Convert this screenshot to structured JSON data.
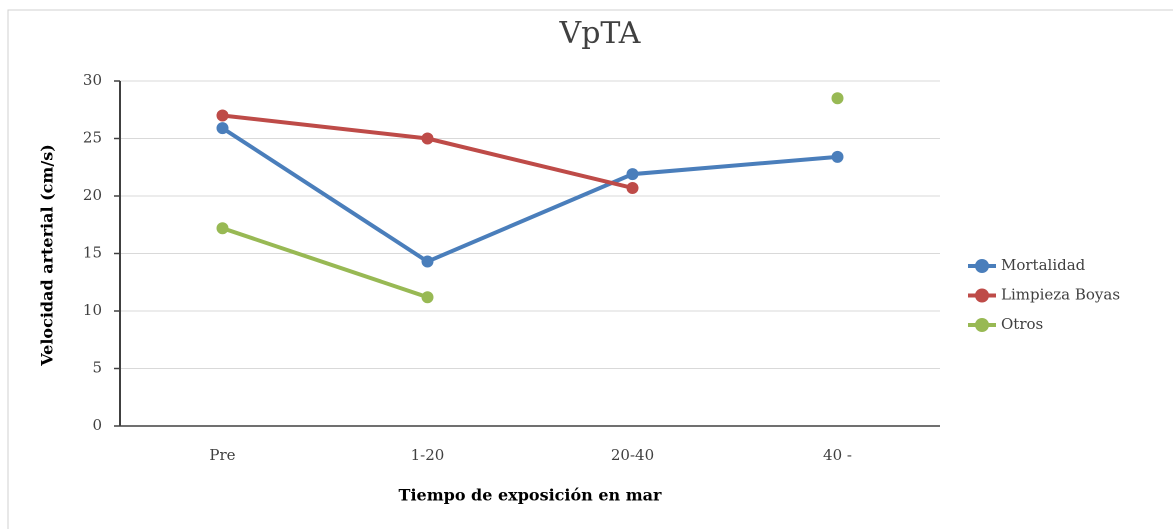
{
  "chart_data": {
    "type": "line",
    "title": "VpTA",
    "x_label": "Tiempo de exposición en  mar",
    "y_label": "Velocidad arterial (cm/s)",
    "categories": [
      "Pre",
      "1-20",
      "20-40",
      "40 -"
    ],
    "series": [
      {
        "name": "Mortalidad",
        "color": "#4a7ebb",
        "values": [
          25.9,
          14.3,
          21.9,
          23.4
        ]
      },
      {
        "name": "Limpieza Boyas",
        "color": "#be4b48",
        "values": [
          27.0,
          25.0,
          20.7,
          null
        ]
      },
      {
        "name": "Otros",
        "color": "#98b954",
        "values": [
          17.2,
          11.2,
          null,
          28.5
        ]
      }
    ],
    "ylim": [
      0,
      30
    ],
    "yticks": [
      0,
      5,
      10,
      15,
      20,
      25,
      30
    ],
    "grid": true,
    "legend": "right"
  }
}
